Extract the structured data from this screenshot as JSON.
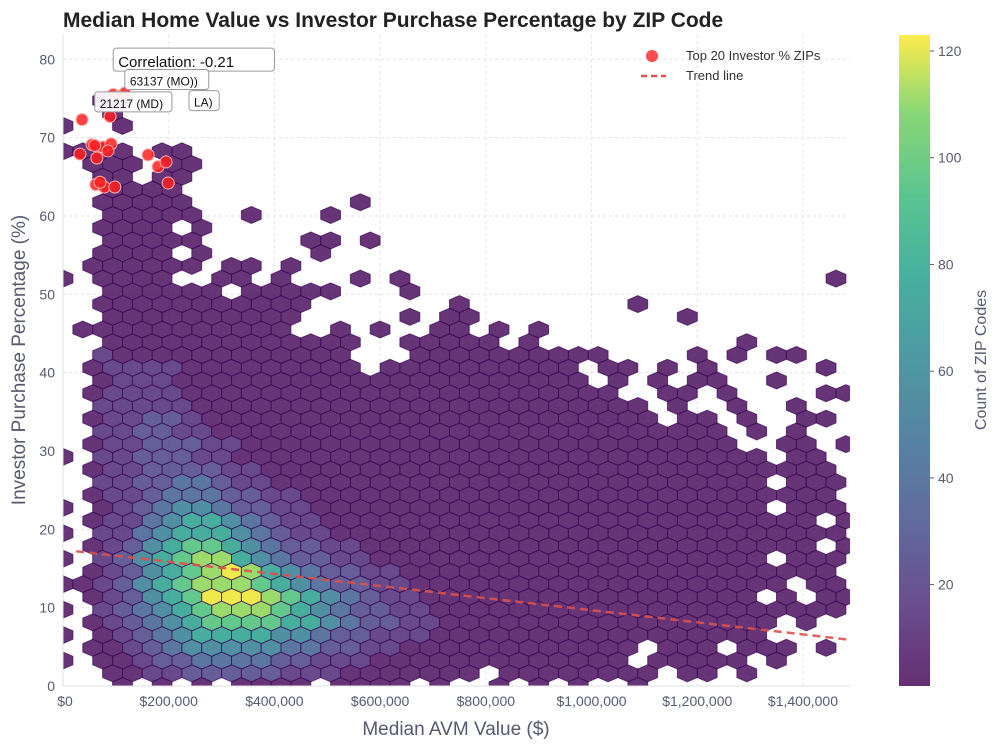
{
  "chart_data": {
    "type": "heatmap",
    "subtype": "hexbin",
    "title": "Median Home Value vs Investor Purchase Percentage by ZIP Code",
    "xlabel": "Median AVM Value ($)",
    "ylabel": "Investor Purchase Percentage (%)",
    "xlim": [
      0,
      1489000
    ],
    "ylim": [
      0,
      83.1
    ],
    "xticks": [
      0,
      200000,
      400000,
      600000,
      800000,
      1000000,
      1200000,
      1400000
    ],
    "xtick_labels": [
      "$0",
      "$200,000",
      "$400,000",
      "$600,000",
      "$800,000",
      "$1,000,000",
      "$1,200,000",
      "$1,400,000"
    ],
    "yticks": [
      0,
      10,
      20,
      30,
      40,
      50,
      60,
      70,
      80
    ],
    "ytick_labels": [
      "0",
      "10",
      "20",
      "30",
      "40",
      "50",
      "60",
      "70",
      "80"
    ],
    "grid": true,
    "colormap": "viridis",
    "colorbar": {
      "label": "Count of ZIP Codes",
      "range": [
        1,
        123
      ],
      "ticks": [
        20,
        40,
        60,
        80,
        100,
        120
      ],
      "tick_labels": [
        "20",
        "40",
        "60",
        "80",
        "100",
        "120"
      ]
    },
    "hexbin": {
      "x_step": 37500,
      "y_step": 1.625,
      "level_counts": {
        "1": 3,
        "2": 12,
        "3": 22,
        "4": 35,
        "5": 50,
        "6": 68,
        "7": 85,
        "8": 100,
        "9": 120
      },
      "rows_bottom_up": [
        "...1.1.1.1111.1111.1..1.1.1..1..........",
        "..1122333332221111111.11111111.11.1.....",
        "1.112334444332221111111111111.11111.1...",
        ".1123455555443322111111111111.111.111.1.",
        "1.1234566665543322211111111111111111....",
        ".12345677776654332211111111111111111.1..",
        "1.23456788876543322111111111111111111111",
        ".1235679998765432211111111111111111.1.11",
        "1123567888765433221111111111111111111.11",
        ".12356789865433221111111111111111111111.",
        "1.2356788654332211111111111111111111.111",
        ".1235677654332211111111111111111111111.1",
        "1.22456665432211111111111111111111111111",
        ".1224566543221111111111111111111111111.1",
        "1.1234554332211111111111111111111111.111",
        ".12234443322111111111111111111111111111.",
        "..2233443221111111111111111111111111.111",
        ".12233332211111111111111111111111111111.",
        "1.2233322111111111111111111111111111.11.",
        ".122333221111111111111111111111111..11.1",
        "..22332211111111111111111111111111.1.1..",
        ".12233211111111111111111111111.11.1..11.",
        "..2222211111111111111111111111.1..1..1..",
        ".122221111111111111111111111..11.1....11",
        "..1222111111111111111111111.1.1.11..1...",
        ".12222111111111.1111111111.11.1.1.....1.",
        "..2111111111111...1111111111....1.1.11..",
        "..1111111111111..11111.1..........1.....",
        ".11111111111..1.1..11.1.1...............",
        "..1111111111.....1.11..........1........",
        "..11111111111.......1........1..........",
        "..111111.11111...1......................",
        "1.1111..11.1...1.1.....................1",
        ".111111.11.1............................",
        "..1111.1.....1..........................",
        "..11111.....11.1........................",
        "..1111.1................................",
        "..11111..1...1..........................",
        "..11111........1........................",
        "..1111..................................",
        "..11.11.................................",
        ".111.11.................................",
        "1111.11.................................",
        "........................................",
        "1..1....................................",
        "..1.....................................",
        "..11...................................."
      ]
    },
    "top20_points": {
      "name": "Top 20 Investor % ZIPs",
      "color": "#ff2020",
      "x": [
        36000,
        95000,
        117000,
        89000,
        32000,
        55000,
        64000,
        76000,
        91000,
        85000,
        161000,
        180000,
        195000,
        199000,
        62000,
        78000,
        98000,
        70000,
        105000,
        60000
      ],
      "y": [
        72.3,
        75.5,
        75.7,
        72.7,
        67.9,
        69.1,
        67.4,
        68.8,
        69.2,
        68.3,
        67.8,
        66.3,
        66.9,
        64.2,
        64.0,
        63.7,
        63.7,
        64.3,
        75.2,
        69.0
      ]
    },
    "trend_line": {
      "name": "Trend line",
      "color": "#d9534f",
      "x": [
        25000,
        1489000
      ],
      "y": [
        17.2,
        5.9
      ]
    },
    "annotations": [
      {
        "text": "Correlation: -0.21",
        "x": 95000,
        "y": 79.0
      },
      {
        "text": "LA)",
        "x": 140000,
        "y": 74.6
      },
      {
        "text": "63137 (MO))",
        "x": 117000,
        "y": 76.4
      },
      {
        "text": "21217 (MD)",
        "x": 60000,
        "y": 73.8
      }
    ],
    "legend": {
      "placement": "top-right",
      "entries": [
        "Top 20 Investor % ZIPs",
        "Trend line"
      ]
    }
  }
}
